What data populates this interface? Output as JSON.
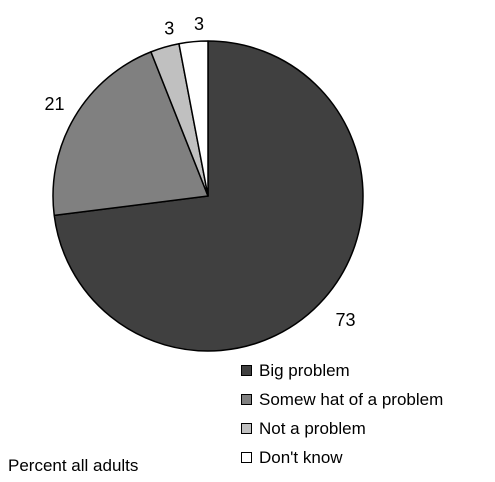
{
  "chart_data": {
    "type": "pie",
    "slices": [
      {
        "label": "Big problem",
        "value": 73,
        "color": "#404040"
      },
      {
        "label": "Somew hat of a problem",
        "value": 21,
        "color": "#808080"
      },
      {
        "label": "Not a problem",
        "value": 3,
        "color": "#c0c0c0"
      },
      {
        "label": "Don't know",
        "value": 3,
        "color": "#ffffff"
      }
    ],
    "legend_placement": "bottom-right",
    "note": "Percent all adults"
  }
}
